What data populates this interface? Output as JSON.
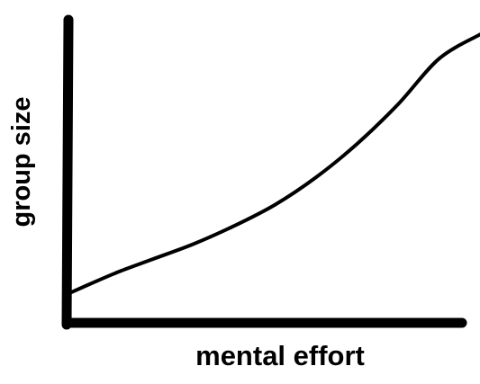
{
  "chart_data": {
    "type": "line",
    "title": "",
    "xlabel": "mental effort",
    "ylabel": "group size",
    "xlim": [
      0,
      1
    ],
    "ylim": [
      0,
      1
    ],
    "grid": false,
    "legend": "none",
    "series": [
      {
        "x": [
          0,
          0.05,
          0.12,
          0.2,
          0.3,
          0.4,
          0.5,
          0.6,
          0.7,
          0.8,
          0.9,
          1.0
        ],
        "y": [
          0.09,
          0.12,
          0.16,
          0.2,
          0.25,
          0.31,
          0.38,
          0.47,
          0.58,
          0.71,
          0.86,
          0.94
        ]
      }
    ],
    "colors": {
      "axis": "#000000",
      "line": "#000000",
      "background": "#ffffff"
    }
  }
}
